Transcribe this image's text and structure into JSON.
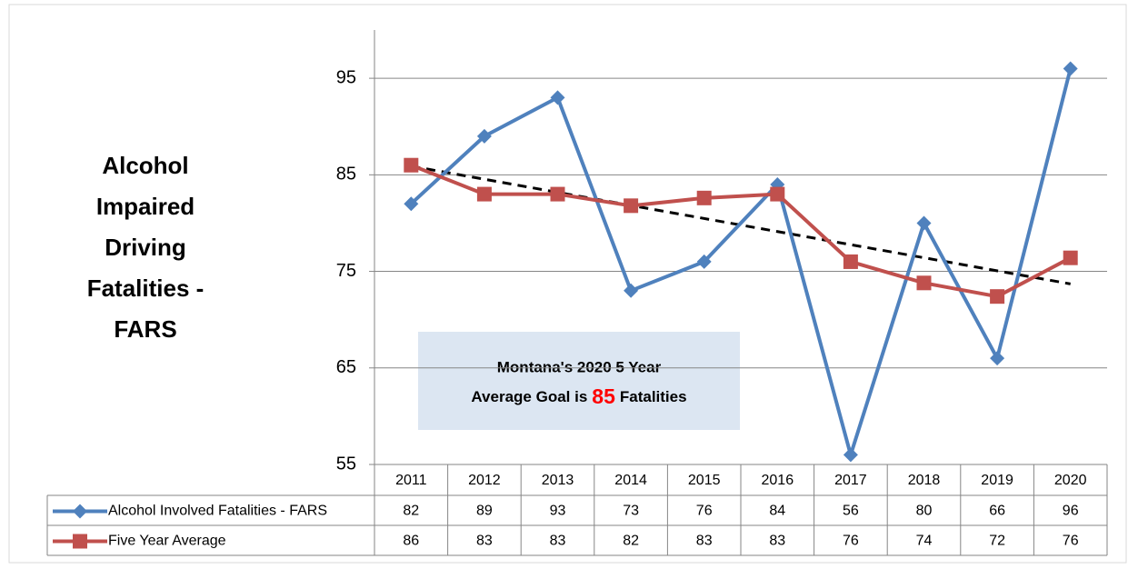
{
  "chart_data": {
    "type": "line",
    "title": "Alcohol Impaired Driving Fatalities - FARS",
    "categories": [
      "2011",
      "2012",
      "2013",
      "2014",
      "2015",
      "2016",
      "2017",
      "2018",
      "2019",
      "2020"
    ],
    "series": [
      {
        "name": "Alcohol Involved Fatalities - FARS",
        "color": "#4f81bd",
        "marker": "diamond",
        "values": [
          82,
          89,
          93,
          73,
          76,
          84,
          56,
          80,
          66,
          96
        ]
      },
      {
        "name": "Five Year Average",
        "color": "#c0504d",
        "marker": "square",
        "trendline": "linear",
        "values": [
          86,
          83,
          83,
          81.8,
          82.6,
          83,
          76,
          73.8,
          72.4,
          76.4
        ],
        "value_labels": [
          "86",
          "83",
          "83",
          "82",
          "83",
          "83",
          "76",
          "74",
          "72",
          "76"
        ]
      }
    ],
    "ylim": [
      55,
      100
    ],
    "yticks": [
      55,
      65,
      75,
      85,
      95
    ],
    "grid": true,
    "annotation": {
      "line1": "Montana's 2020 5 Year",
      "before": "Average Goal is",
      "goal": "85",
      "after": "Fatalities"
    }
  }
}
